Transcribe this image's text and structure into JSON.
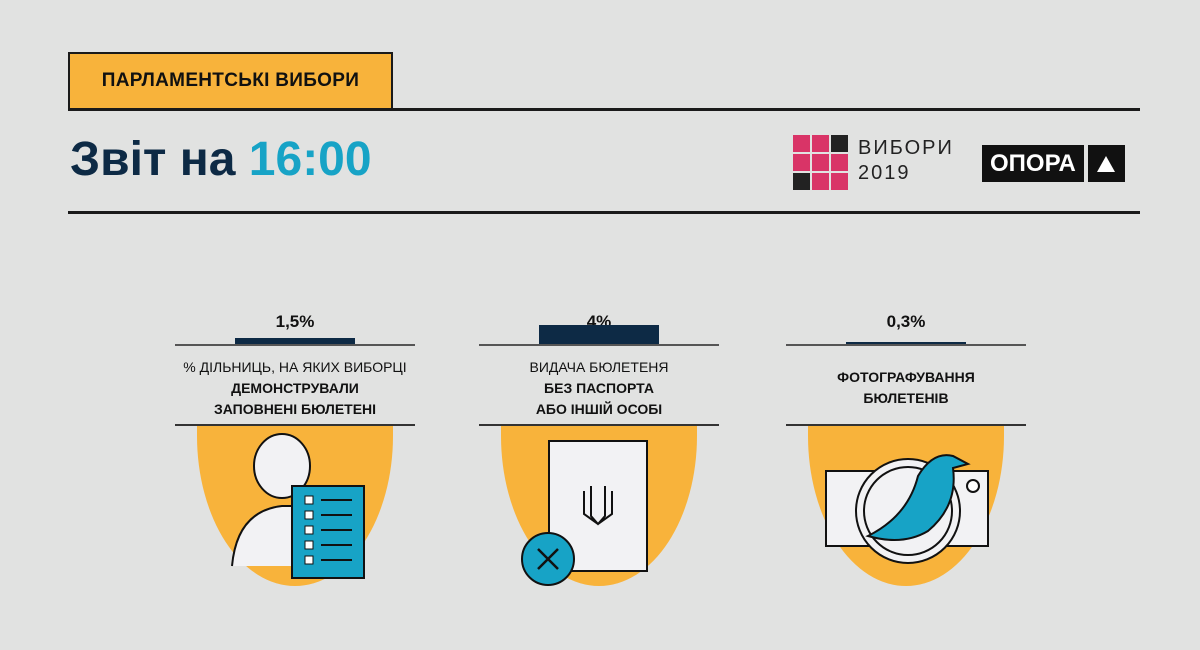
{
  "header": {
    "tag": "ПАРЛАМЕНТСЬКІ ВИБОРИ",
    "title_prefix": "Звіт на",
    "title_time": "16:00"
  },
  "logos": {
    "vybory_line1": "ВИБОРИ",
    "vybory_line2": "2019",
    "opora": "ОПОРА"
  },
  "colors": {
    "accent_orange": "#f8b33b",
    "navy": "#0d2a45",
    "cyan": "#17a3c6",
    "pink": "#d93467"
  },
  "chart_data": {
    "type": "bar",
    "categories": [
      "% ДІЛЬНИЦЬ, НА ЯКИХ ВИБОРЦІ ДЕМОНСТРУВАЛИ ЗАПОВНЕНІ БЮЛЕТЕНІ",
      "ВИДАЧА БЮЛЕТЕНЯ БЕЗ ПАСПОРТА АБО ІНШІЙ ОСОБІ",
      "ФОТОГРАФУВАННЯ БЮЛЕТЕНІВ"
    ],
    "values": [
      1.5,
      4,
      0.3
    ],
    "value_labels": [
      "1,5%",
      "4%",
      "0,3%"
    ],
    "unit": "%"
  },
  "items": [
    {
      "value": "1,5%",
      "label_light": "% ДІЛЬНИЦЬ, НА ЯКИХ ВИБОРЦІ",
      "label_bold1": "ДЕМОНСТРУВАЛИ",
      "label_bold2": "ЗАПОВНЕНІ БЮЛЕТЕНІ",
      "icon": "voter-ballot-icon"
    },
    {
      "value": "4%",
      "label_light": "ВИДАЧА БЮЛЕТЕНЯ",
      "label_bold1": "БЕЗ ПАСПОРТА",
      "label_bold2": "АБО ІНШІЙ ОСОБІ",
      "icon": "passport-cross-icon"
    },
    {
      "value": "0,3%",
      "label_light": "",
      "label_bold1": "ФОТОГРАФУВАННЯ",
      "label_bold2": "БЮЛЕТЕНІВ",
      "icon": "camera-bird-icon"
    }
  ]
}
